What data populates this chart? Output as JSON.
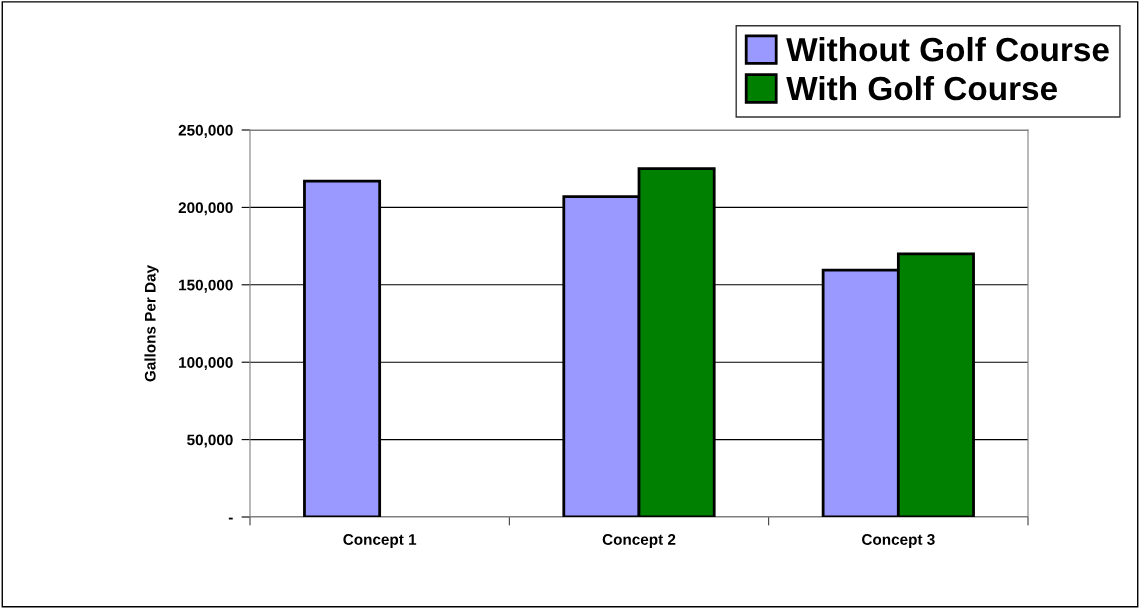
{
  "chart_data": {
    "type": "bar",
    "ylabel": "Gallons Per Day",
    "categories": [
      "Concept 1",
      "Concept 2",
      "Concept 3"
    ],
    "series": [
      {
        "name": "Without Golf Course",
        "color": "#9999ff",
        "values": [
          217000,
          207000,
          159500
        ]
      },
      {
        "name": "With Golf Course",
        "color": "#008000",
        "values": [
          null,
          225000,
          170000
        ]
      }
    ],
    "ylim": [
      0,
      250000
    ],
    "yticks": [
      {
        "value": 0,
        "label": "-"
      },
      {
        "value": 50000,
        "label": "50,000"
      },
      {
        "value": 100000,
        "label": "100,000"
      },
      {
        "value": 150000,
        "label": "150,000"
      },
      {
        "value": 200000,
        "label": "200,000"
      },
      {
        "value": 250000,
        "label": "250,000"
      }
    ],
    "grid": "y",
    "legend": "top right"
  }
}
